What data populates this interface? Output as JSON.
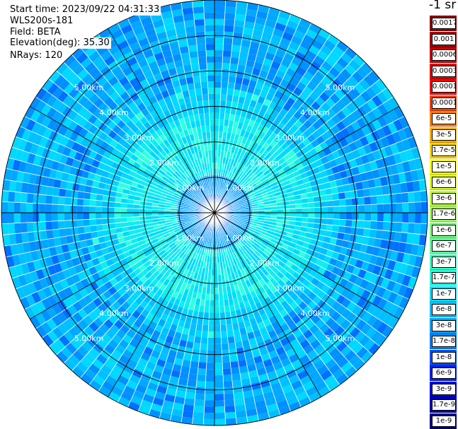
{
  "info": {
    "start_time": "Start time: 2023/09/22 04:31:33",
    "instrument": "WLS200s-181",
    "field": "Field: BETA",
    "elevation": "Elevation(deg): 35.30",
    "nrays": "NRays: 120"
  },
  "colorbar": {
    "title": "-1 sr",
    "labels": [
      "0.0017",
      "0.001",
      "0.0006",
      "0.0003",
      "0.00017",
      "0.0001",
      "6e-5",
      "3e-5",
      "1.7e-5",
      "1e-5",
      "6e-6",
      "3e-6",
      "1.7e-6",
      "1e-6",
      "6e-7",
      "3e-7",
      "1.7e-7",
      "1e-7",
      "6e-8",
      "3e-8",
      "1.7e-8",
      "1e-8",
      "6e-9",
      "3e-9",
      "1.7e-9",
      "1e-9"
    ],
    "colors": [
      "#8b0000",
      "#a80000",
      "#c80000",
      "#e00000",
      "#ff0000",
      "#ff4000",
      "#ff8000",
      "#ffb000",
      "#ffd800",
      "#ffff00",
      "#e0ff20",
      "#c0ff40",
      "#a0ff60",
      "#80ff80",
      "#60ffa0",
      "#40ffc0",
      "#20ffe0",
      "#00e0ff",
      "#00c0ff",
      "#00a0ff",
      "#0080ff",
      "#0050ff",
      "#0020ff",
      "#0000e0",
      "#0000b0",
      "#000080"
    ]
  },
  "chart_data": {
    "type": "heatmap",
    "projection": "polar (PPI scan)",
    "title": "",
    "nrays": 120,
    "range_rings_km": [
      1,
      2,
      3,
      4,
      5,
      6
    ],
    "range_ring_labels": [
      "1.00km",
      "2.00km",
      "3.00km",
      "4.00km",
      "5.00km"
    ],
    "spoke_angles_deg": [
      0,
      30,
      60,
      90,
      120,
      150,
      180,
      210,
      240,
      270,
      300,
      330
    ],
    "grid": true,
    "max_range_km": 6,
    "variable": "BETA",
    "units": "-1 sr",
    "value_range": [
      1e-09,
      0.0017
    ],
    "field_summary": [
      {
        "range_km": [
          0,
          1
        ],
        "typical_value": "1.7e-8"
      },
      {
        "range_km": [
          1,
          3
        ],
        "typical_value": "1.7e-7"
      },
      {
        "range_km": [
          3,
          6
        ],
        "typical_value": "3e-8"
      }
    ]
  }
}
